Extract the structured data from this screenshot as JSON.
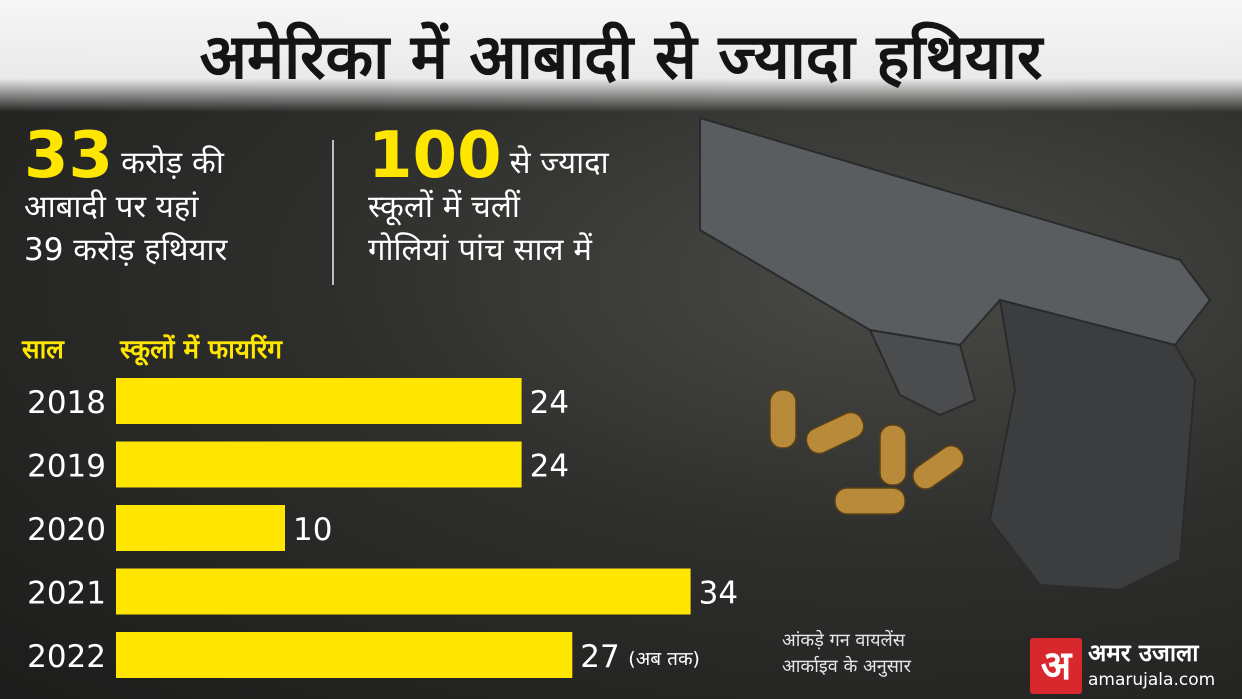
{
  "title": "अमेरिका में आबादी से ज्यादा हथियार",
  "stats": [
    {
      "big": "33",
      "line1_rest": "करोड़ की",
      "line2": "आबादी पर यहां",
      "line3": "39 करोड़ हथियार"
    },
    {
      "big": "100",
      "line1_rest": "से ज्यादा",
      "line2": "स्कूलों में चलीं",
      "line3": "गोलियां पांच साल में"
    }
  ],
  "chart_headers": {
    "year": "साल",
    "firing": "स्कूलों में फायरिंग"
  },
  "chart_data": {
    "type": "bar",
    "orientation": "horizontal",
    "categories": [
      "2018",
      "2019",
      "2020",
      "2021",
      "2022"
    ],
    "values": [
      24,
      24,
      10,
      34,
      27
    ],
    "value_notes": [
      "",
      "",
      "",
      "",
      "(अब तक)"
    ],
    "title": "",
    "xlabel": "स्कूलों में फायरिंग",
    "ylabel": "साल",
    "xlim": [
      0,
      34
    ],
    "bar_color": "#ffe600",
    "grid": false
  },
  "source": {
    "line1": "आंकड़े गन वायलेंस",
    "line2": "आर्काइव के अनुसार"
  },
  "logo": {
    "mark": "अ",
    "name": "अमर उजाला",
    "url": "amarujala.com"
  },
  "colors": {
    "accent": "#ffe600",
    "brand": "#d9272e"
  }
}
